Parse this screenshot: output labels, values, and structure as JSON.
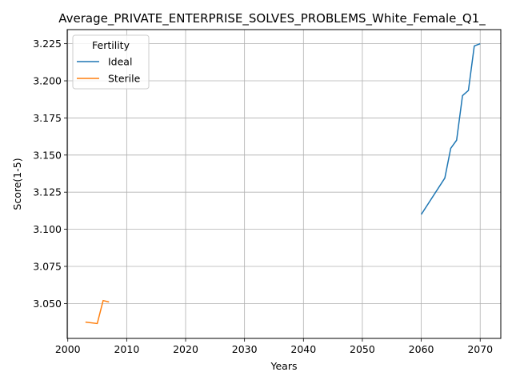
{
  "chart_data": {
    "type": "line",
    "title": "Average_PRIVATE_ENTERPRISE_SOLVES_PROBLEMS_White_Female_Q1_",
    "xlabel": "Years",
    "ylabel": "Score(1-5)",
    "xlim": [
      1999.9,
      2073.5
    ],
    "ylim": [
      3.0265,
      3.2345
    ],
    "xticks": [
      2000,
      2010,
      2020,
      2030,
      2040,
      2050,
      2060,
      2070
    ],
    "yticks": [
      3.05,
      3.075,
      3.1,
      3.125,
      3.15,
      3.175,
      3.2,
      3.225
    ],
    "xtick_labels": [
      "2000",
      "2010",
      "2020",
      "2030",
      "2040",
      "2050",
      "2060",
      "2070"
    ],
    "ytick_labels": [
      "3.050",
      "3.075",
      "3.100",
      "3.125",
      "3.150",
      "3.175",
      "3.200",
      "3.225"
    ],
    "grid": true,
    "legend": {
      "title": "Fertility",
      "placement": "top-left"
    },
    "series": [
      {
        "name": "Ideal",
        "color": "#1f77b4",
        "x": [
          2060,
          2064,
          2065,
          2066,
          2067,
          2068,
          2069,
          2070
        ],
        "y": [
          3.11,
          3.1345,
          3.1545,
          3.16,
          3.19,
          3.1935,
          3.2235,
          3.225
        ]
      },
      {
        "name": "Sterile",
        "color": "#ff7f0e",
        "x": [
          2003,
          2005,
          2006,
          2007
        ],
        "y": [
          3.0375,
          3.0365,
          3.052,
          3.051
        ]
      }
    ]
  }
}
